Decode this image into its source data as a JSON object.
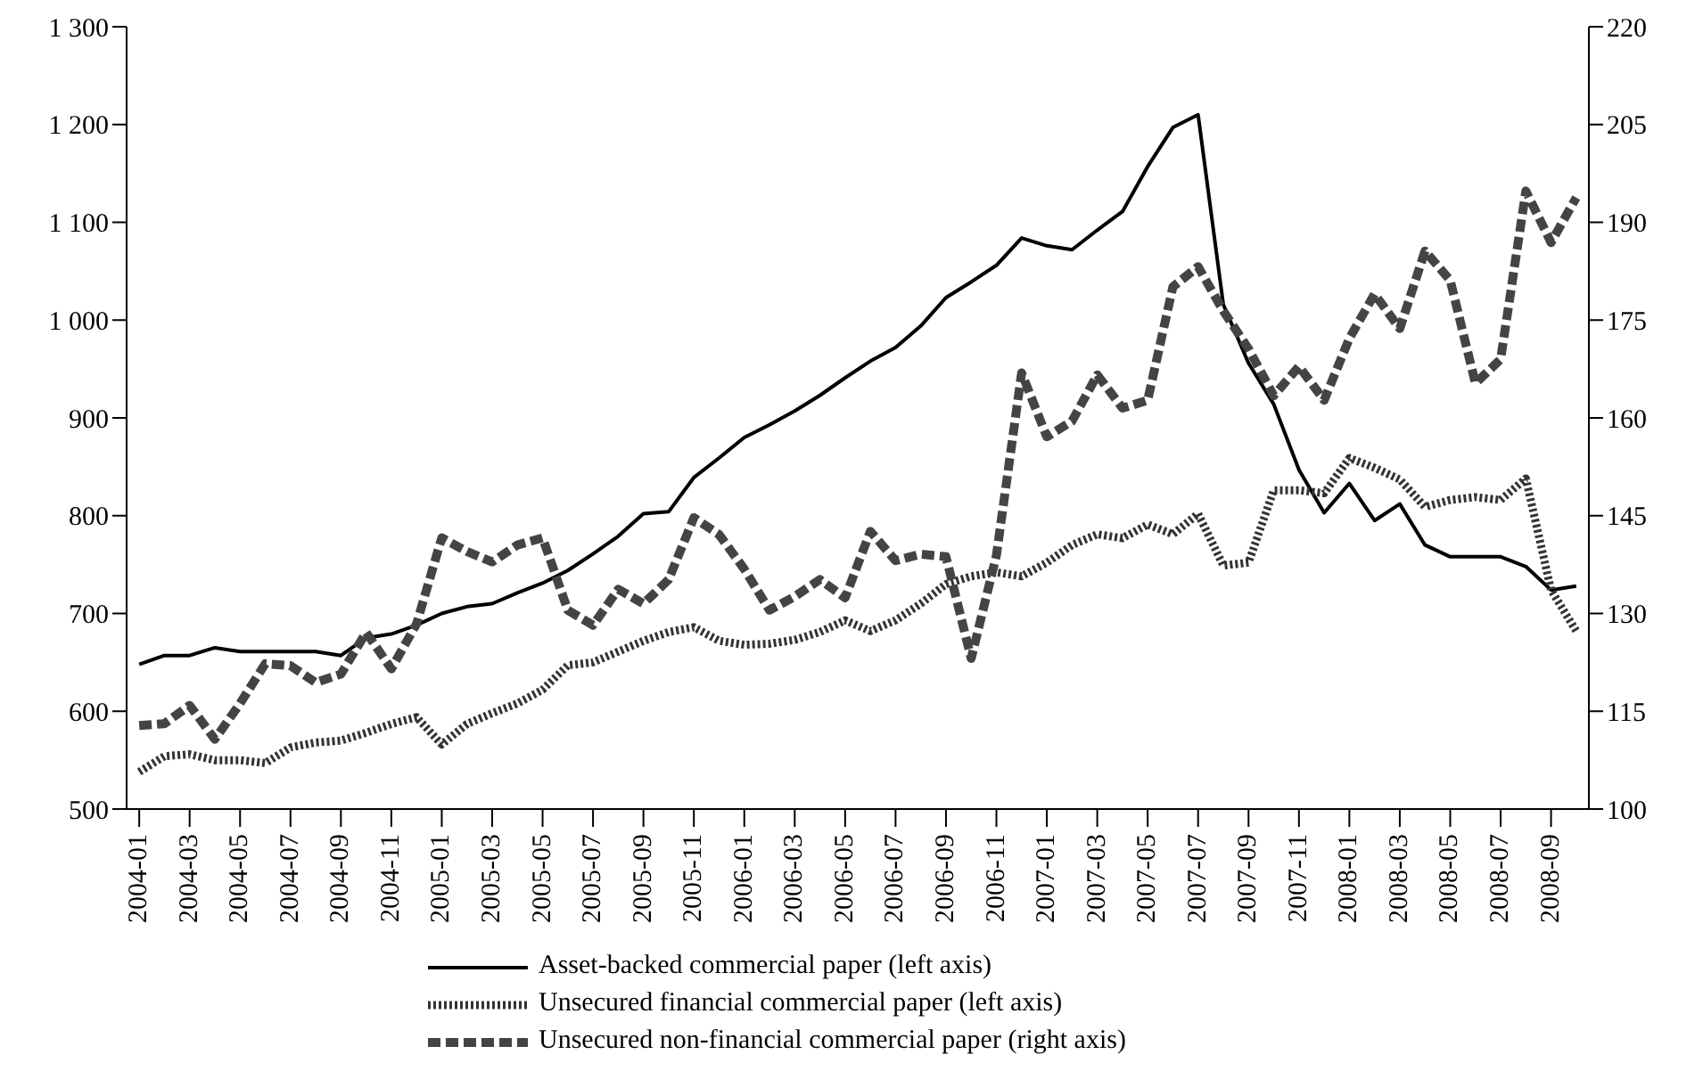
{
  "chart_data": {
    "type": "line",
    "categories": [
      "2004-01",
      null,
      "2004-03",
      null,
      "2004-05",
      null,
      "2004-07",
      null,
      "2004-09",
      null,
      "2004-11",
      null,
      "2005-01",
      null,
      "2005-03",
      null,
      "2005-05",
      null,
      "2005-07",
      null,
      "2005-09",
      null,
      "2005-11",
      null,
      "2006-01",
      null,
      "2006-03",
      null,
      "2006-05",
      null,
      "2006-07",
      null,
      "2006-09",
      null,
      "2006-11",
      null,
      "2007-01",
      null,
      "2007-03",
      null,
      "2007-05",
      null,
      "2007-07",
      null,
      "2007-09",
      null,
      "2007-11",
      null,
      "2008-01",
      null,
      "2008-03",
      null,
      "2008-05",
      null,
      "2008-07",
      null,
      "2008-09",
      null
    ],
    "series": [
      {
        "name": "Asset-backed commercial paper (left axis)",
        "color": "#000000",
        "line_style": "solid",
        "values": [
          648,
          657,
          657,
          665,
          661,
          661,
          661,
          661,
          657,
          675,
          679,
          688,
          700,
          707,
          710,
          721,
          731,
          744,
          761,
          779,
          802,
          804,
          839,
          859,
          880,
          893,
          907,
          923,
          941,
          958,
          972,
          994,
          1023,
          1039,
          1056,
          1084,
          1076,
          1072,
          1092,
          1111,
          1157,
          1197,
          1210,
          1016,
          956,
          914,
          847,
          803,
          833,
          795,
          812,
          770,
          758,
          758,
          758,
          748,
          724,
          728
        ]
      },
      {
        "name": "Unsecured financial commercial paper (left axis)",
        "color": "#333333",
        "line_style": "dotted",
        "values": [
          538,
          554,
          556,
          550,
          550,
          547,
          563,
          568,
          570,
          578,
          587,
          594,
          566,
          587,
          598,
          608,
          622,
          647,
          650,
          661,
          672,
          681,
          686,
          672,
          668,
          669,
          673,
          681,
          693,
          682,
          693,
          710,
          730,
          738,
          742,
          738,
          752,
          770,
          781,
          777,
          791,
          781,
          802,
          749,
          752,
          826,
          826,
          823,
          859,
          849,
          837,
          809,
          816,
          819,
          816,
          838,
          724,
          682
        ]
      },
      {
        "name": "Unsecured non-financial commercial paper (right axis)",
        "color": "#444444",
        "line_style": "dashed",
        "axis": "y2",
        "values": [
          112.8,
          113.1,
          115.9,
          110.7,
          116.2,
          122.3,
          122,
          119.4,
          120.7,
          127.1,
          121.5,
          128.4,
          141.6,
          139.5,
          137.9,
          140.5,
          141.6,
          130.5,
          128.2,
          133.7,
          131.5,
          135.2,
          144.7,
          142.1,
          136.8,
          130.5,
          132.6,
          135.2,
          132.4,
          142.6,
          138.1,
          139.1,
          138.7,
          123.1,
          138.9,
          166.9,
          157.1,
          159.5,
          166.6,
          161.5,
          162.7,
          180.1,
          183.2,
          176.4,
          170.6,
          163.4,
          167.9,
          162.7,
          172.2,
          179,
          173.7,
          185.6,
          181.1,
          165.3,
          169,
          194.8,
          186.9,
          193.8
        ]
      }
    ],
    "ylim": [
      500,
      1300
    ],
    "yticks": [
      500,
      600,
      700,
      800,
      900,
      {
        "value": 1000,
        "label": "1 000"
      },
      {
        "value": 1100,
        "label": "1 100"
      },
      {
        "value": 1200,
        "label": "1 200"
      },
      {
        "value": 1300,
        "label": "1 300"
      }
    ],
    "y2lim": [
      100,
      220
    ],
    "y2ticks": [
      100,
      115,
      130,
      145,
      160,
      175,
      190,
      205,
      220
    ],
    "grid": false,
    "legend": "bottom"
  }
}
